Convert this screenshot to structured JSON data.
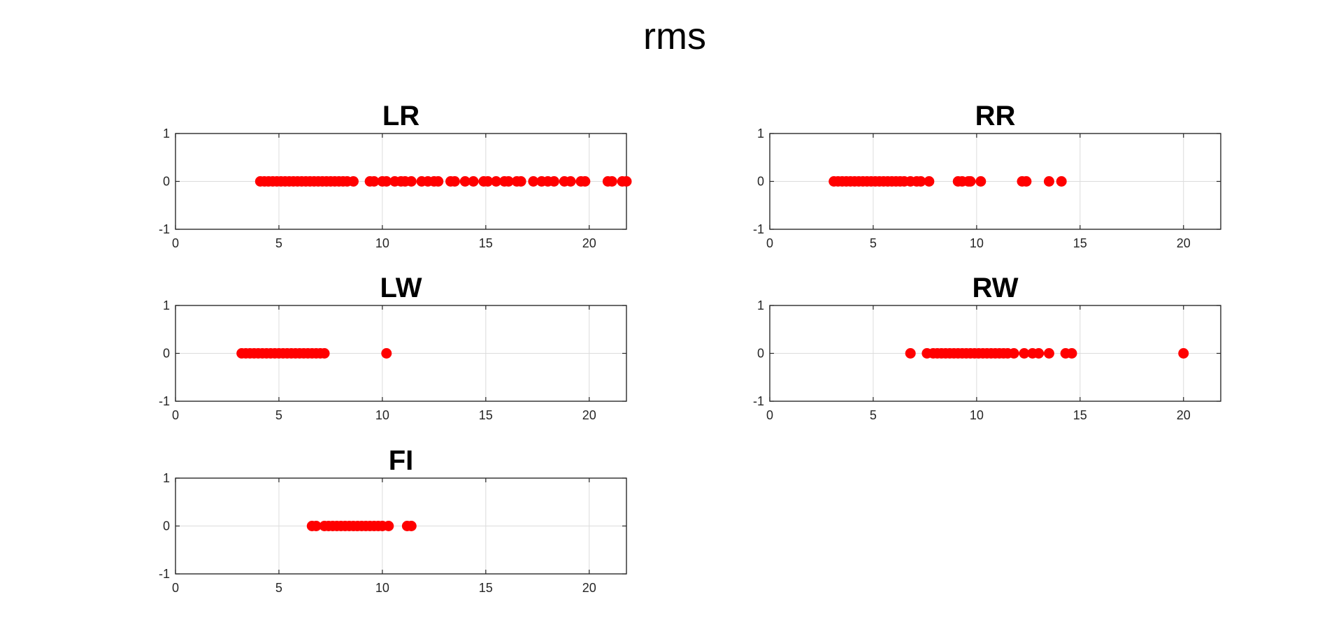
{
  "figure_title": "rms",
  "chart_data": [
    {
      "type": "scatter",
      "title": "LR",
      "xlim": [
        0,
        21.8
      ],
      "ylim": [
        -1,
        1
      ],
      "xticks": [
        "0",
        "5",
        "10",
        "15",
        "20"
      ],
      "yticks": [
        "1",
        "0",
        "-1"
      ],
      "grid": true,
      "marker_color": "#ff0000",
      "x": [
        4.1,
        4.3,
        4.5,
        4.7,
        4.9,
        5.1,
        5.3,
        5.5,
        5.7,
        5.9,
        6.1,
        6.3,
        6.5,
        6.7,
        6.9,
        7.1,
        7.3,
        7.5,
        7.7,
        7.9,
        8.1,
        8.3,
        8.6,
        9.4,
        9.6,
        10.0,
        10.2,
        10.6,
        10.9,
        11.1,
        11.4,
        11.9,
        12.2,
        12.5,
        12.7,
        13.3,
        13.5,
        14.0,
        14.4,
        14.9,
        15.1,
        15.5,
        15.9,
        16.1,
        16.5,
        16.7,
        17.3,
        17.7,
        18.0,
        18.3,
        18.8,
        19.1,
        19.6,
        19.8,
        20.9,
        21.1,
        21.6,
        21.8
      ],
      "y": [
        0,
        0,
        0,
        0,
        0,
        0,
        0,
        0,
        0,
        0,
        0,
        0,
        0,
        0,
        0,
        0,
        0,
        0,
        0,
        0,
        0,
        0,
        0,
        0,
        0,
        0,
        0,
        0,
        0,
        0,
        0,
        0,
        0,
        0,
        0,
        0,
        0,
        0,
        0,
        0,
        0,
        0,
        0,
        0,
        0,
        0,
        0,
        0,
        0,
        0,
        0,
        0,
        0,
        0,
        0,
        0,
        0,
        0
      ]
    },
    {
      "type": "scatter",
      "title": "RR",
      "xlim": [
        0,
        21.8
      ],
      "ylim": [
        -1,
        1
      ],
      "xticks": [
        "0",
        "5",
        "10",
        "15",
        "20"
      ],
      "yticks": [
        "1",
        "0",
        "-1"
      ],
      "grid": true,
      "marker_color": "#ff0000",
      "x": [
        3.1,
        3.3,
        3.5,
        3.7,
        3.9,
        4.1,
        4.3,
        4.5,
        4.7,
        4.9,
        5.1,
        5.3,
        5.5,
        5.7,
        5.9,
        6.1,
        6.3,
        6.5,
        6.8,
        7.1,
        7.3,
        7.7,
        9.1,
        9.3,
        9.6,
        9.7,
        10.2,
        12.2,
        12.4,
        13.5,
        14.1
      ],
      "y": [
        0,
        0,
        0,
        0,
        0,
        0,
        0,
        0,
        0,
        0,
        0,
        0,
        0,
        0,
        0,
        0,
        0,
        0,
        0,
        0,
        0,
        0,
        0,
        0,
        0,
        0,
        0,
        0,
        0,
        0,
        0
      ]
    },
    {
      "type": "scatter",
      "title": "LW",
      "xlim": [
        0,
        21.8
      ],
      "ylim": [
        -1,
        1
      ],
      "xticks": [
        "0",
        "5",
        "10",
        "15",
        "20"
      ],
      "yticks": [
        "1",
        "0",
        "-1"
      ],
      "grid": true,
      "marker_color": "#ff0000",
      "x": [
        3.2,
        3.4,
        3.6,
        3.8,
        4.0,
        4.2,
        4.4,
        4.6,
        4.8,
        5.0,
        5.2,
        5.4,
        5.6,
        5.8,
        6.0,
        6.2,
        6.4,
        6.6,
        6.8,
        7.0,
        7.2,
        10.2
      ],
      "y": [
        0,
        0,
        0,
        0,
        0,
        0,
        0,
        0,
        0,
        0,
        0,
        0,
        0,
        0,
        0,
        0,
        0,
        0,
        0,
        0,
        0,
        0
      ]
    },
    {
      "type": "scatter",
      "title": "RW",
      "xlim": [
        0,
        21.8
      ],
      "ylim": [
        -1,
        1
      ],
      "xticks": [
        "0",
        "5",
        "10",
        "15",
        "20"
      ],
      "yticks": [
        "1",
        "0",
        "-1"
      ],
      "grid": true,
      "marker_color": "#ff0000",
      "x": [
        6.8,
        7.6,
        7.9,
        8.1,
        8.3,
        8.5,
        8.7,
        8.9,
        9.1,
        9.3,
        9.5,
        9.7,
        9.9,
        10.1,
        10.3,
        10.5,
        10.7,
        10.9,
        11.1,
        11.3,
        11.5,
        11.8,
        12.3,
        12.7,
        13.0,
        13.5,
        14.3,
        14.6,
        20.0
      ],
      "y": [
        0,
        0,
        0,
        0,
        0,
        0,
        0,
        0,
        0,
        0,
        0,
        0,
        0,
        0,
        0,
        0,
        0,
        0,
        0,
        0,
        0,
        0,
        0,
        0,
        0,
        0,
        0,
        0,
        0
      ]
    },
    {
      "type": "scatter",
      "title": "FI",
      "xlim": [
        0,
        21.8
      ],
      "ylim": [
        -1,
        1
      ],
      "xticks": [
        "0",
        "5",
        "10",
        "15",
        "20"
      ],
      "yticks": [
        "1",
        "0",
        "-1"
      ],
      "grid": true,
      "marker_color": "#ff0000",
      "x": [
        6.6,
        6.8,
        7.2,
        7.4,
        7.6,
        7.8,
        8.0,
        8.2,
        8.4,
        8.6,
        8.8,
        9.0,
        9.2,
        9.4,
        9.6,
        9.8,
        10.0,
        10.3,
        11.2,
        11.4
      ],
      "y": [
        0,
        0,
        0,
        0,
        0,
        0,
        0,
        0,
        0,
        0,
        0,
        0,
        0,
        0,
        0,
        0,
        0,
        0,
        0,
        0
      ]
    }
  ]
}
